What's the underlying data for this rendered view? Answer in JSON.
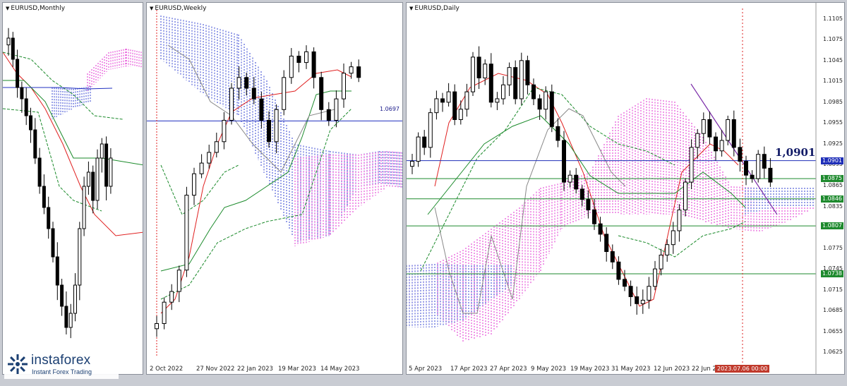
{
  "panels": [
    {
      "title": "EURUSD,Monthly",
      "x_labels": [],
      "y_labels": []
    },
    {
      "title": "EURUSD,Weekly",
      "x_labels": [
        "2 Oct 2022",
        "27 Nov 2022",
        "22 Jan 2023",
        "19 Mar 2023",
        "14 May 2023"
      ],
      "level_label": "1.0697",
      "y_labels": []
    },
    {
      "title": "EURUSD,Daily",
      "x_labels": [
        "5 Apr 2023",
        "17 Apr 2023",
        "27 Apr 2023",
        "9 May 2023",
        "19 May 2023",
        "31 May 2023",
        "12 Jun 2023",
        "22 Jun 20"
      ],
      "date_tag": "2023.07.06 00:00",
      "big_level": "1,0901",
      "y_labels": [
        "1.1105",
        "1.1075",
        "1.1045",
        "1.1015",
        "1.0985",
        "1.0955",
        "1.0925",
        "1.0895",
        "1.0865",
        "1.0835",
        "1.0805",
        "1.0775",
        "1.0745",
        "1.0715",
        "1.0685",
        "1.0655",
        "1.0625"
      ],
      "tags": [
        {
          "text": "1.0901",
          "color": "#1f2fb8"
        },
        {
          "text": "1.0875",
          "color": "#1e8a2e"
        },
        {
          "text": "1.0846",
          "color": "#1e8a2e"
        },
        {
          "text": "1.0807",
          "color": "#1e8a2e"
        },
        {
          "text": "1.0738",
          "color": "#1e8a2e"
        }
      ]
    }
  ],
  "logo": {
    "name": "instaforex",
    "tagline": "Instant Forex Trading"
  },
  "chart_data": [
    {
      "type": "candlestick",
      "title": "EURUSD,Monthly",
      "series": [
        {
          "name": "price",
          "values": [
            1.175,
            1.16,
            1.14,
            1.132,
            1.12,
            1.11,
            1.09,
            1.07,
            1.055,
            1.04,
            1.02,
            1.0,
            0.985,
            0.97,
            0.98,
            1.0,
            1.04,
            1.07,
            1.08,
            1.06,
            1.09,
            1.1,
            1.07,
            1.09
          ]
        }
      ]
    },
    {
      "type": "candlestick",
      "title": "EURUSD,Weekly",
      "series": [
        {
          "name": "price",
          "values": [
            0.975,
            0.985,
            0.99,
            1.0,
            1.035,
            1.045,
            1.05,
            1.055,
            1.06,
            1.07,
            1.085,
            1.09,
            1.085,
            1.08,
            1.07,
            1.06,
            1.075,
            1.09,
            1.1,
            1.097,
            1.102,
            1.09,
            1.075,
            1.07,
            1.08,
            1.092,
            1.095,
            1.09
          ]
        }
      ],
      "levels": [
        1.0697
      ]
    },
    {
      "type": "candlestick",
      "title": "EURUSD,Daily",
      "y_ticks": [
        1.1105,
        1.1075,
        1.1045,
        1.1015,
        1.0985,
        1.0955,
        1.0925,
        1.0895,
        1.0865,
        1.0835,
        1.0805,
        1.0775,
        1.0745,
        1.0715,
        1.0685,
        1.0655,
        1.0625
      ],
      "ylim": [
        1.061,
        1.112
      ],
      "series": [
        {
          "name": "close",
          "values": [
            1.09,
            1.0935,
            1.092,
            1.097,
            1.099,
            1.0985,
            1.1,
            1.096,
            1.0975,
            1.1,
            1.105,
            1.102,
            1.104,
            1.0985,
            1.099,
            1.101,
            1.1035,
            1.099,
            1.1045,
            1.101,
            1.099,
            1.0975,
            1.1,
            1.095,
            1.093,
            1.087,
            1.088,
            1.086,
            1.0845,
            1.083,
            1.081,
            1.0795,
            1.077,
            1.0755,
            1.073,
            1.072,
            1.0705,
            1.0695,
            1.07,
            1.072,
            1.0745,
            1.0765,
            1.078,
            1.08,
            1.083,
            1.087,
            1.092,
            1.094,
            1.096,
            1.0935,
            1.0915,
            1.093,
            1.096,
            1.092,
            1.09,
            1.088,
            1.0875,
            1.091,
            1.089,
            1.087
          ]
        }
      ],
      "levels": [
        1.0901,
        1.0875,
        1.0846,
        1.0807,
        1.0738
      ]
    }
  ]
}
